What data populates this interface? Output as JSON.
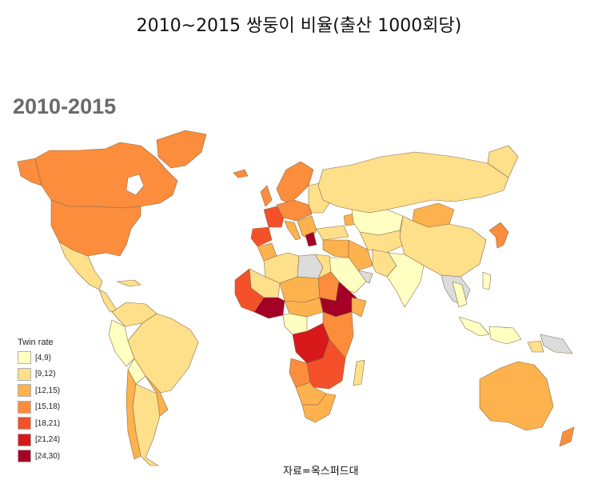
{
  "title": "2010~2015 쌍둥이 비율(출산 1000회당)",
  "panel_title": "2010-2015",
  "legend": {
    "title": "Twin rate",
    "items": [
      {
        "label": "[4,9)",
        "color": "#ffffc2"
      },
      {
        "label": "[9,12)",
        "color": "#fedf8a"
      },
      {
        "label": "[12,15)",
        "color": "#fdb24d"
      },
      {
        "label": "[15,18)",
        "color": "#fc8d3c"
      },
      {
        "label": "[18,21)",
        "color": "#f4512a"
      },
      {
        "label": "[21,24)",
        "color": "#d7191c"
      },
      {
        "label": "[24,30)",
        "color": "#a50026"
      }
    ]
  },
  "no_data_color": "#dcdcdc",
  "ocean_color": "#ffffff",
  "source": "자료=옥스퍼드대"
}
